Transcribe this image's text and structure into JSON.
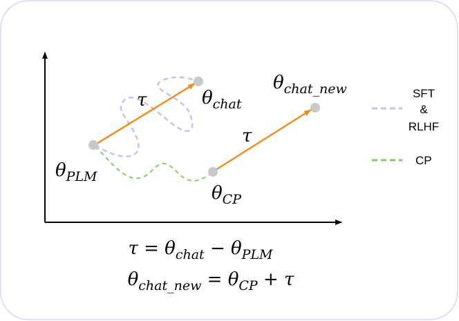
{
  "points": [
    {
      "symbol": "θ",
      "subscript": "PLM"
    },
    {
      "symbol": "θ",
      "subscript": "chat"
    },
    {
      "symbol": "θ",
      "subscript": "chat_new"
    },
    {
      "symbol": "θ",
      "subscript": "CP"
    }
  ],
  "vectors": [
    {
      "label": "τ"
    },
    {
      "label": "τ"
    }
  ],
  "legend": [
    {
      "lines": [
        "SFT",
        "&",
        "RLHF"
      ]
    },
    {
      "lines": [
        "CP"
      ]
    }
  ],
  "equations": [
    [
      {
        "text": "τ = θ",
        "sub": "chat"
      },
      {
        "text": " − θ",
        "sub": "PLM"
      }
    ],
    [
      {
        "text": "θ",
        "sub": "chat_new"
      },
      {
        "text": " = θ",
        "sub": "CP"
      },
      {
        "text": " + τ"
      }
    ]
  ]
}
